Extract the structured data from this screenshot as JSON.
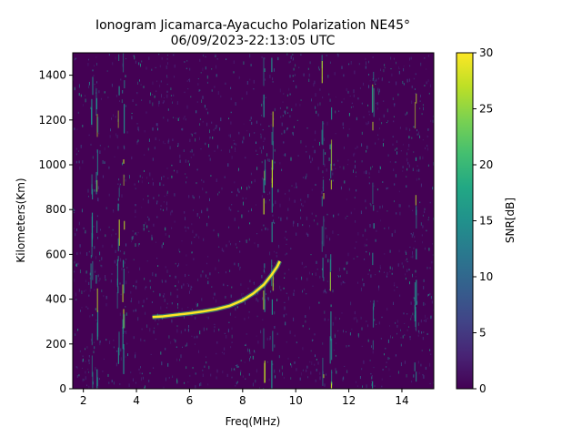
{
  "chart_data": {
    "type": "heatmap",
    "title": "Ionogram Jicamarca-Ayacucho Polarization NE45°",
    "subtitle": "06/09/2023-22:13:05 UTC",
    "xlabel": "Freq(MHz)",
    "ylabel": "Kilometers(Km)",
    "xlim": [
      1.6,
      15.2
    ],
    "ylim": [
      0,
      1500
    ],
    "xticks": [
      2,
      4,
      6,
      8,
      10,
      12,
      14
    ],
    "yticks": [
      0,
      200,
      400,
      600,
      800,
      1000,
      1200,
      1400
    ],
    "colorbar": {
      "label": "SNR[dB]",
      "range": [
        0,
        30
      ],
      "ticks": [
        0,
        5,
        10,
        15,
        20,
        25,
        30
      ],
      "colormap": "viridis"
    },
    "trace": {
      "name": "",
      "freq_mhz": [
        4.6,
        5.0,
        5.5,
        6.0,
        6.5,
        7.0,
        7.5,
        8.0,
        8.4,
        8.8,
        9.1,
        9.3,
        9.4
      ],
      "height_km": [
        320,
        323,
        330,
        337,
        345,
        355,
        370,
        395,
        425,
        465,
        510,
        545,
        570
      ]
    },
    "vertical_features_mhz": [
      2.3,
      2.5,
      3.3,
      3.5,
      8.8,
      9.1,
      11.0,
      11.3,
      12.9,
      14.5
    ]
  }
}
